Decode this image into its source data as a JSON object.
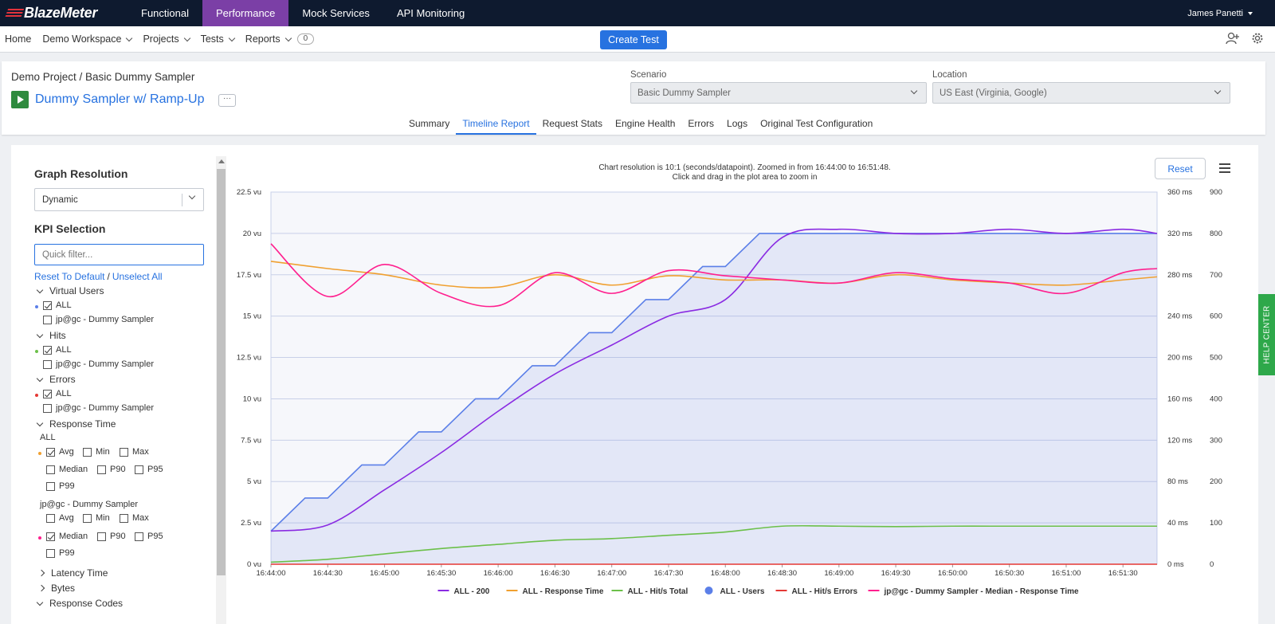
{
  "brand": {
    "logo_text": "BlazeMeter"
  },
  "topnav": {
    "items": [
      "Functional",
      "Performance",
      "Mock Services",
      "API Monitoring"
    ],
    "active": "Performance",
    "user": "James Panetti"
  },
  "subnav": {
    "home": "Home",
    "workspace": "Demo Workspace",
    "projects": "Projects",
    "tests": "Tests",
    "reports": "Reports",
    "reports_count": "0",
    "create_test": "Create Test"
  },
  "header": {
    "breadcrumb": "Demo Project / Basic Dummy Sampler",
    "test_name": "Dummy Sampler w/ Ramp-Up",
    "more": "···",
    "scenario_label": "Scenario",
    "scenario_value": "Basic Dummy Sampler",
    "location_label": "Location",
    "location_value": "US East (Virginia, Google)",
    "tabs": [
      "Summary",
      "Timeline Report",
      "Request Stats",
      "Engine Health",
      "Errors",
      "Logs",
      "Original Test Configuration"
    ],
    "active_tab": "Timeline Report"
  },
  "sidebar": {
    "graph_resolution_title": "Graph Resolution",
    "graph_resolution_value": "Dynamic",
    "kpi_title": "KPI Selection",
    "filter_placeholder": "Quick filter...",
    "reset_link": "Reset To Default",
    "unselect_link": "Unselect All",
    "groups": {
      "virtual_users": "Virtual Users",
      "hits": "Hits",
      "errors": "Errors",
      "response_time": "Response Time",
      "latency_time": "Latency Time",
      "bytes": "Bytes",
      "response_codes": "Response Codes"
    },
    "all_label": "ALL",
    "sampler_label": "jp@gc - Dummy Sampler",
    "rt_options": [
      "Avg",
      "Min",
      "Max",
      "Median",
      "P90",
      "P95",
      "P99"
    ]
  },
  "chart_note": {
    "line1": "Chart resolution is 10:1 (seconds/datapoint). Zoomed in from 16:44:00 to 16:51:48.",
    "line2": "Click and drag in the plot area to zoom in"
  },
  "reset_label": "Reset",
  "help_center": "HELP CENTER",
  "chart_data": {
    "type": "line",
    "x": [
      "16:44:00",
      "16:44:30",
      "16:45:00",
      "16:45:30",
      "16:46:00",
      "16:46:30",
      "16:47:00",
      "16:47:30",
      "16:48:00",
      "16:48:30",
      "16:49:00",
      "16:49:30",
      "16:50:00",
      "16:50:30",
      "16:51:00",
      "16:51:30",
      "16:51:48"
    ],
    "x_ticks": [
      "16:44:00",
      "16:44:30",
      "16:45:00",
      "16:45:30",
      "16:46:00",
      "16:46:30",
      "16:47:00",
      "16:47:30",
      "16:48:00",
      "16:48:30",
      "16:49:00",
      "16:49:30",
      "16:50:00",
      "16:50:30",
      "16:51:00",
      "16:51:30"
    ],
    "y_left": {
      "ticks": [
        "0 vu",
        "2.5 vu",
        "5 vu",
        "7.5 vu",
        "10 vu",
        "12.5 vu",
        "15 vu",
        "17.5 vu",
        "20 vu",
        "22.5 vu"
      ],
      "ylim": [
        0,
        22.5
      ],
      "unit": "vu"
    },
    "y_right_ms": {
      "ticks": [
        "0 ms",
        "40 ms",
        "80 ms",
        "120 ms",
        "160 ms",
        "200 ms",
        "240 ms",
        "280 ms",
        "320 ms",
        "360 ms"
      ],
      "ylim": [
        0,
        360
      ],
      "unit": "ms"
    },
    "y_right": {
      "ticks": [
        "0",
        "100",
        "200",
        "300",
        "400",
        "500",
        "600",
        "700",
        "800",
        "900"
      ],
      "ylim": [
        0,
        900
      ]
    },
    "series": [
      {
        "name": "ALL - 200",
        "color": "#8a2be2",
        "axis": "right",
        "values": [
          80,
          95,
          180,
          270,
          370,
          460,
          530,
          600,
          640,
          790,
          810,
          800,
          800,
          810,
          800,
          810,
          800
        ]
      },
      {
        "name": "ALL - Response Time",
        "color": "#f0a030",
        "axis": "right_ms",
        "values": [
          293,
          286,
          280,
          270,
          268,
          280,
          270,
          279,
          275,
          275,
          272,
          280,
          275,
          272,
          270,
          275,
          278
        ]
      },
      {
        "name": "ALL - Hit/s Total",
        "color": "#6cc04a",
        "axis": "right",
        "values": [
          5,
          12,
          25,
          38,
          48,
          58,
          62,
          70,
          78,
          92,
          92,
          91,
          92,
          92,
          92,
          92,
          92
        ]
      },
      {
        "name": "ALL - Users",
        "color": "#5b7fe8",
        "axis": "left",
        "values": [
          2,
          4,
          6,
          8,
          10,
          12,
          14,
          16,
          18,
          20,
          20,
          20,
          20,
          20,
          20,
          20,
          20
        ]
      },
      {
        "name": "ALL - Hit/s Errors",
        "color": "#e53935",
        "axis": "right",
        "values": [
          0,
          0,
          0,
          0,
          0,
          0,
          0,
          0,
          0,
          0,
          0,
          0,
          0,
          0,
          0,
          0,
          0
        ]
      },
      {
        "name": "jp@gc - Dummy Sampler - Median - Response Time",
        "color": "#ff1f8e",
        "axis": "right_ms",
        "values": [
          310,
          259,
          290,
          262,
          250,
          282,
          262,
          284,
          279,
          275,
          272,
          282,
          276,
          272,
          262,
          282,
          286
        ]
      }
    ]
  }
}
